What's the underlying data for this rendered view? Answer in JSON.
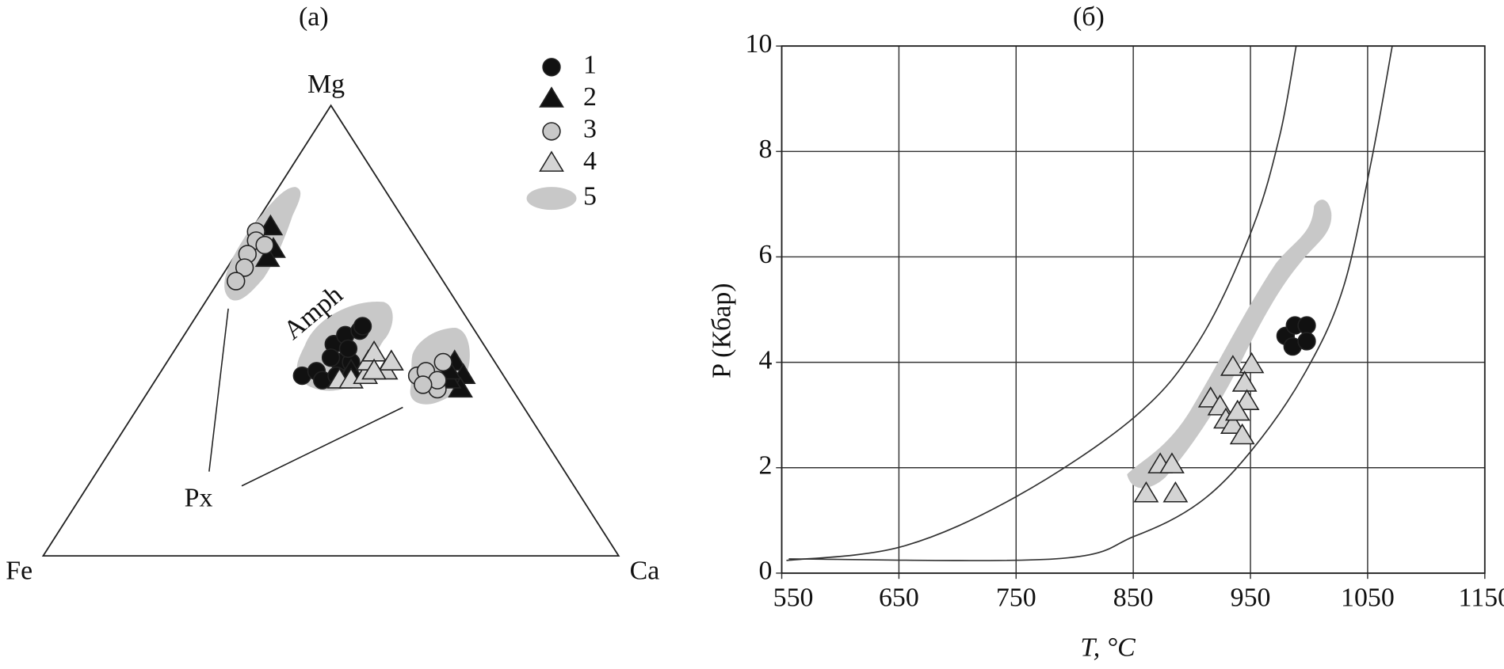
{
  "chart_data": [
    {
      "type": "ternary",
      "title": "(a)",
      "vertices": {
        "top": "Mg",
        "left": "Fe",
        "right": "Ca"
      },
      "labels": [
        "Amph",
        "Px"
      ],
      "series": [
        {
          "name": "1",
          "color": "#111111",
          "marker": "circle",
          "Mg": [
            40,
            41,
            39,
            43,
            40,
            43,
            47,
            49,
            50,
            51,
            46,
            44
          ],
          "Ca": [
            25,
            27,
            29,
            30,
            31,
            32,
            27,
            28,
            30,
            30,
            30,
            28
          ],
          "Fe": [
            35,
            32,
            32,
            27,
            29,
            25,
            26,
            23,
            20,
            19,
            24,
            28
          ]
        },
        {
          "name": "2",
          "color": "#111111",
          "marker": "triangle",
          "Mg": [
            73,
            68,
            66,
            41,
            43,
            40,
            37,
            39,
            41
          ],
          "Ca": [
            3,
            6,
            6,
            33,
            50,
            53,
            54,
            51,
            50
          ],
          "Fe": [
            24,
            26,
            28,
            26,
            7,
            7,
            9,
            10,
            9
          ]
        },
        {
          "name": "3",
          "color": "#c8c8c8",
          "marker": "circle",
          "Mg": [
            72,
            70,
            69,
            67,
            64,
            61,
            40,
            41,
            37,
            39,
            43,
            38
          ],
          "Ca": [
            1,
            2,
            4,
            2,
            3,
            3,
            45,
            46,
            50,
            49,
            48,
            47
          ],
          "Fe": [
            27,
            28,
            27,
            31,
            33,
            36,
            15,
            13,
            13,
            12,
            9,
            15
          ]
        },
        {
          "name": "4",
          "color": "#d4d4d4",
          "marker": "triangle",
          "Mg": [
            39,
            39,
            40,
            43,
            45,
            41,
            43,
            41
          ],
          "Ca": [
            32,
            34,
            36,
            35,
            35,
            39,
            39,
            37
          ],
          "Fe": [
            29,
            27,
            24,
            22,
            20,
            20,
            18,
            22
          ]
        },
        {
          "name": "5",
          "color": "#c8c8c8",
          "marker": "field"
        }
      ]
    },
    {
      "type": "scatter",
      "title": "(б)",
      "x_label": "T, °C",
      "y_label": "P (Кбар)",
      "xlim": [
        550,
        1150
      ],
      "xticks": [
        550,
        650,
        750,
        850,
        950,
        1050,
        1150
      ],
      "ylim": [
        0,
        10
      ],
      "yticks": [
        0,
        2,
        4,
        6,
        8,
        10
      ],
      "grid": true,
      "series": [
        {
          "name": "1",
          "color": "#111111",
          "marker": "circle",
          "x": [
            980,
            988,
            998,
            986,
            998
          ],
          "values": [
            4.5,
            4.7,
            4.7,
            4.3,
            4.4
          ]
        },
        {
          "name": "4",
          "color": "#d4d4d4",
          "marker": "triangle",
          "x": [
            861,
            886,
            873,
            883,
            916,
            924,
            935,
            951,
            945,
            929,
            947,
            935,
            943,
            939
          ],
          "values": [
            1.5,
            1.5,
            2.05,
            2.05,
            3.3,
            3.15,
            3.9,
            3.95,
            3.6,
            2.9,
            3.25,
            2.8,
            2.6,
            3.05
          ]
        },
        {
          "color": "#333333",
          "marker": "line",
          "x": [
            554,
            652,
            750,
            851,
            906,
            951,
            975,
            989
          ],
          "values": [
            0.24,
            0.5,
            1.45,
            2.96,
            4.4,
            6.5,
            8.3,
            10
          ]
        },
        {
          "color": "#333333",
          "marker": "line",
          "x": [
            556,
            783,
            851,
            906,
            951,
            996,
            1029,
            1053,
            1071
          ],
          "values": [
            0.27,
            0.27,
            0.7,
            1.33,
            2.33,
            3.78,
            5.4,
            7.8,
            10
          ]
        }
      ]
    }
  ]
}
